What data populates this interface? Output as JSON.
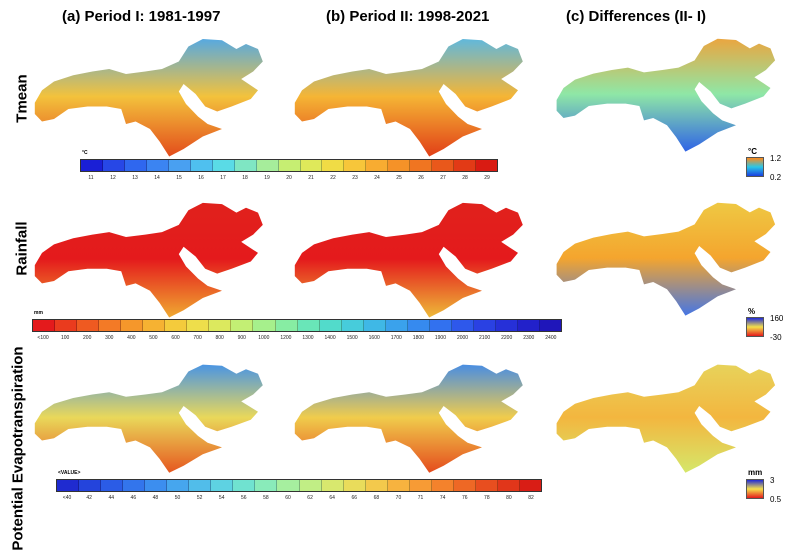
{
  "columns": {
    "a": "(a) Period I: 1981-1997",
    "b": "(b) Period II: 1998-2021",
    "c": "(c) Differences (II- I)"
  },
  "rows": {
    "tmean": "Tmean",
    "rainfall": "Rainfall",
    "pet": "Potential Evapotranspiration"
  },
  "colorbars": {
    "tmean": {
      "unit": "°C",
      "ticks": [
        "11",
        "12",
        "13",
        "14",
        "15",
        "16",
        "17",
        "18",
        "19",
        "20",
        "21",
        "22",
        "23",
        "24",
        "25",
        "26",
        "27",
        "28",
        "29"
      ],
      "colors": [
        "#1a1fd6",
        "#2747e6",
        "#2f67ef",
        "#3b84f2",
        "#49a0f1",
        "#4fc0ef",
        "#5adbe6",
        "#7fe6c3",
        "#a6ed9b",
        "#c6ee72",
        "#dfe95a",
        "#f0dc45",
        "#f7c63a",
        "#f8ac31",
        "#f59228",
        "#f07521",
        "#e9581b",
        "#e23a16",
        "#d91b12"
      ]
    },
    "rainfall": {
      "unit": "mm",
      "ticks": [
        "<100",
        "100",
        "200",
        "300",
        "400",
        "500",
        "600",
        "700",
        "800",
        "900",
        "1000",
        "1200",
        "1300",
        "1400",
        "1500",
        "1600",
        "1700",
        "1800",
        "1900",
        "2000",
        "2100",
        "2200",
        "2300",
        "2400"
      ],
      "colors": [
        "#e41a1c",
        "#ea3b1e",
        "#ef5a21",
        "#f37a26",
        "#f5972b",
        "#f6b232",
        "#f4cb3c",
        "#eede4b",
        "#dce95e",
        "#c3ef74",
        "#a6f08c",
        "#87eda3",
        "#69e6b8",
        "#52dbcb",
        "#47ccdb",
        "#3fb8e6",
        "#3aa2ec",
        "#368aef",
        "#3271ef",
        "#2e58eb",
        "#2a41e3",
        "#2630d8",
        "#2221ca",
        "#1f16ba"
      ]
    },
    "pet": {
      "unit": "<VALUE>",
      "ticks": [
        "<40",
        "42",
        "44",
        "46",
        "48",
        "50",
        "52",
        "54",
        "56",
        "58",
        "60",
        "62",
        "64",
        "66",
        "68",
        "70",
        "71",
        "74",
        "76",
        "78",
        "80",
        "82"
      ],
      "colors": [
        "#1f2bd0",
        "#2444dc",
        "#2b5ce6",
        "#3375ec",
        "#3c8eef",
        "#46a6ee",
        "#51bdea",
        "#5ed2e2",
        "#70e2d0",
        "#89ebba",
        "#a6ef9f",
        "#c1ee85",
        "#d8e86e",
        "#e9dc5b",
        "#f3c94c",
        "#f7b33f",
        "#f79b35",
        "#f4822c",
        "#ee6825",
        "#e84e1f",
        "#e1361a",
        "#d91d15"
      ]
    }
  },
  "legends": {
    "tmean": {
      "unit": "°C",
      "max": "1.2",
      "min": "0.2",
      "top_color": "#ff8a1a",
      "mid_color": "#29c7e8",
      "bottom_color": "#1a3fe0"
    },
    "rainfall": {
      "unit": "%",
      "max": "160",
      "min": "-30",
      "top_color": "#1f2ad8",
      "mid_color": "#f5e04a",
      "bottom_color": "#e41a1c"
    },
    "pet": {
      "unit": "mm",
      "max": "3",
      "min": "0.5",
      "top_color": "#1f2ad8",
      "mid_color": "#f5e04a",
      "bottom_color": "#e41a1c"
    }
  },
  "map_fills": {
    "tmean_a": {
      "north": "#4aa7ee",
      "middle": "#f3c23c",
      "south": "#e2471a"
    },
    "tmean_b": {
      "north": "#54b8ea",
      "middle": "#f5b535",
      "south": "#e03a16"
    },
    "tmean_c": {
      "north": "#f2a037",
      "middle": "#8fe7a6",
      "south": "#2b5ee8"
    },
    "rainfall_a": {
      "north": "#e0221c",
      "middle": "#e41a1c",
      "south": "#f0b032"
    },
    "rainfall_b": {
      "north": "#e0221c",
      "middle": "#e41a1c",
      "south": "#eec13a"
    },
    "rainfall_c": {
      "north": "#eecb45",
      "middle": "#f4a52e",
      "south": "#3e74ec"
    },
    "pet_a": {
      "north": "#3d8fef",
      "middle": "#e9d85a",
      "south": "#e6521d"
    },
    "pet_b": {
      "north": "#3b88ef",
      "middle": "#f0cc4c",
      "south": "#e4461b"
    },
    "pet_c": {
      "north": "#e6d55d",
      "middle": "#f3b63f",
      "south": "#d4e96c"
    }
  }
}
